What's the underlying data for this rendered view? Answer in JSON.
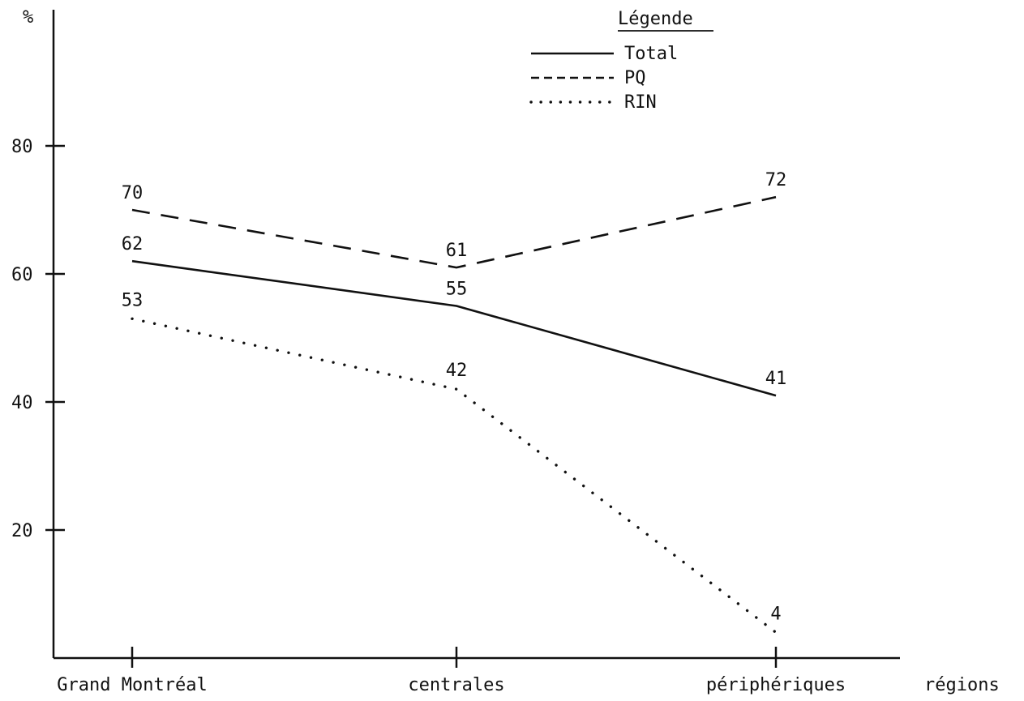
{
  "chart_data": {
    "type": "line",
    "ylabel": "%",
    "xlabel": "régions",
    "categories": [
      "Grand Montréal",
      "centrales",
      "périphériques"
    ],
    "y_ticks": [
      20,
      40,
      60,
      80
    ],
    "ylim": [
      0,
      100
    ],
    "grid": false,
    "legend": {
      "title": "Légende",
      "placement": "top-right"
    },
    "series": [
      {
        "name": "Total",
        "style": "solid",
        "values": [
          62,
          55,
          41
        ],
        "labels": [
          "62",
          "55",
          "41"
        ]
      },
      {
        "name": "PQ",
        "style": "dashed",
        "values": [
          70,
          61,
          72
        ],
        "labels": [
          "70",
          "61",
          "72"
        ]
      },
      {
        "name": "RIN",
        "style": "dotted",
        "values": [
          53,
          42,
          4
        ],
        "labels": [
          "53",
          "42",
          "4"
        ]
      }
    ]
  }
}
